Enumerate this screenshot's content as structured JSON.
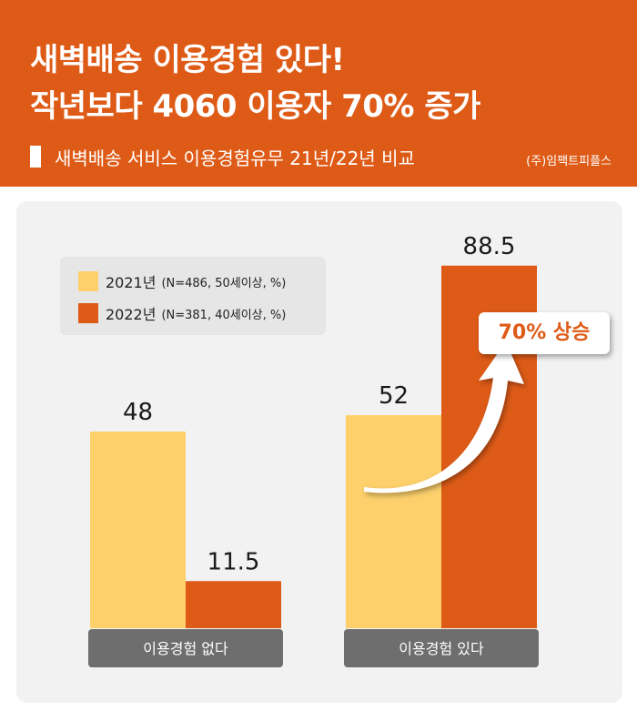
{
  "header": {
    "title_line1": "새벽배송 이용경험 있다!",
    "title_line2": "작년보다 4060 이용자 70% 증가",
    "subtitle": "새벽배송 서비스 이용경험유무 21년/22년 비교",
    "source": "(주)임팩트피플스"
  },
  "legend": [
    {
      "year": "2021년",
      "note": "(N=486, 50세이상, %)",
      "color": "#fdd06c"
    },
    {
      "year": "2022년",
      "note": "(N=381, 40세이상, %)",
      "color": "#de5b17"
    }
  ],
  "callout": {
    "label": "70% 상승"
  },
  "colors": {
    "accent": "#de5b17",
    "light": "#fdd06c",
    "category_bar": "#6e6e6e"
  },
  "chart_data": {
    "type": "bar",
    "categories": [
      "이용경험 없다",
      "이용경험 있다"
    ],
    "series": [
      {
        "name": "2021년",
        "values": [
          48,
          52
        ],
        "labels": [
          "48",
          "52"
        ]
      },
      {
        "name": "2022년",
        "values": [
          11.5,
          88.5
        ],
        "labels": [
          "11.5",
          "88.5"
        ]
      }
    ],
    "ylim": [
      0,
      100
    ],
    "grid": false,
    "legend_position": "top-left"
  }
}
